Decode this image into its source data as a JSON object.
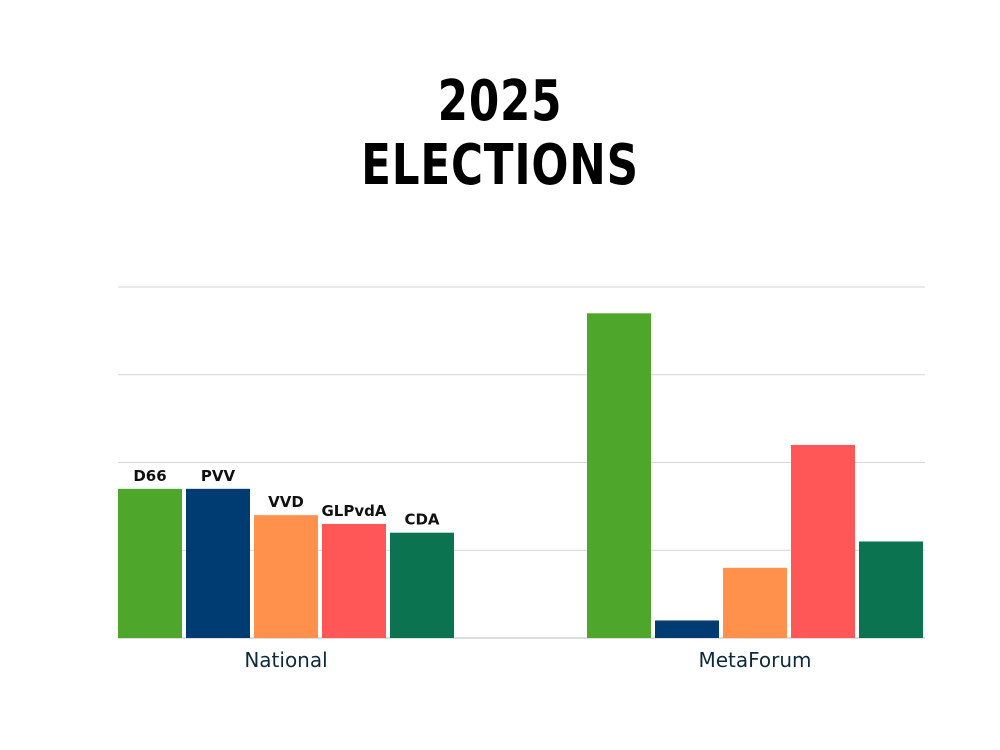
{
  "title": {
    "line1": "2025",
    "line2": "ELECTIONS"
  },
  "chart_data": {
    "type": "bar",
    "categories": [
      "National",
      "MetaForum"
    ],
    "series": [
      {
        "name": "D66",
        "color": "#4ea72a",
        "values": [
          17,
          37
        ]
      },
      {
        "name": "PVV",
        "color": "#003c71",
        "values": [
          17,
          2
        ]
      },
      {
        "name": "VVD",
        "color": "#ff914d",
        "values": [
          14,
          8
        ]
      },
      {
        "name": "GLPvdA",
        "color": "#ff5757",
        "values": [
          13,
          22
        ]
      },
      {
        "name": "CDA",
        "color": "#0c7351",
        "values": [
          12,
          11
        ]
      }
    ],
    "bar_labels_shown_for_category": "National",
    "ylim": [
      0,
      40
    ],
    "grid": true,
    "xlabel": "",
    "ylabel": ""
  }
}
